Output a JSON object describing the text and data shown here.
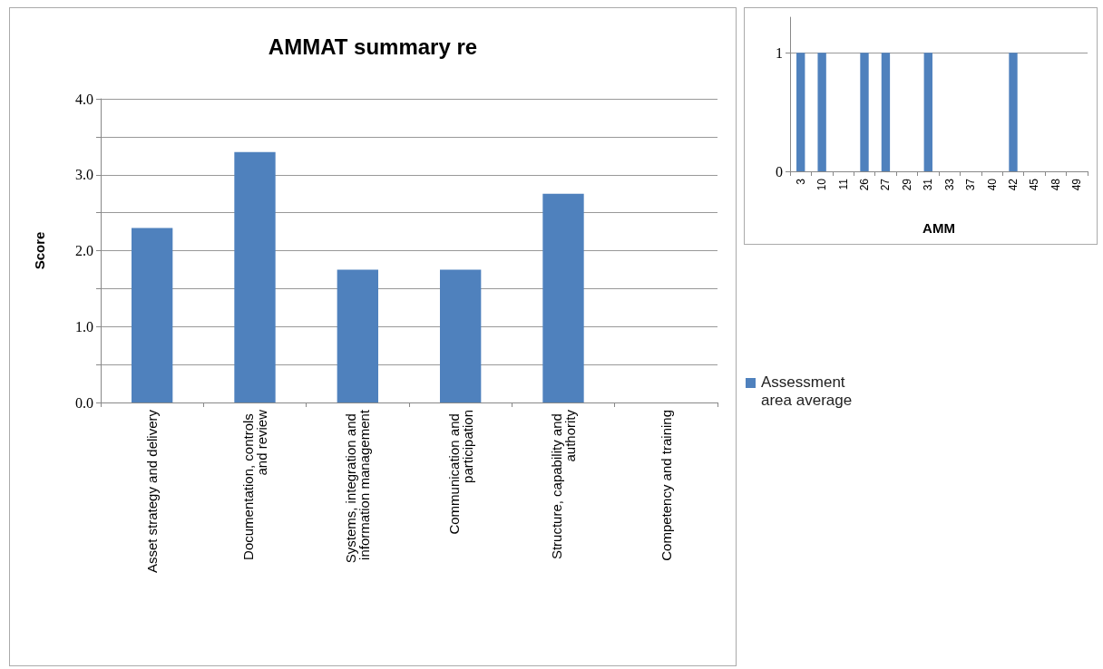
{
  "chart_data": [
    {
      "type": "bar",
      "title": "AMMAT summary re",
      "ylabel": "Score",
      "categories": [
        "Asset strategy and delivery",
        "Documentation, controls and review",
        "Systems, integration and information management",
        "Communication and participation",
        "Structure, capability and authority",
        "Competency and training"
      ],
      "series": [
        {
          "name": "Assessment area average",
          "color": "#4f81bd",
          "values": [
            2.3,
            3.3,
            1.75,
            1.75,
            2.75,
            null
          ]
        }
      ],
      "ylim": [
        0,
        4
      ],
      "yticks": [
        {
          "value": 0,
          "label": "0.0"
        },
        {
          "value": 0.5,
          "label": null
        },
        {
          "value": 1,
          "label": "1.0"
        },
        {
          "value": 1.5,
          "label": null
        },
        {
          "value": 2,
          "label": "2.0"
        },
        {
          "value": 2.5,
          "label": null
        },
        {
          "value": 3,
          "label": "3.0"
        },
        {
          "value": 3.5,
          "label": null
        },
        {
          "value": 4,
          "label": "4.0"
        }
      ],
      "grid": "y",
      "legend": "right"
    },
    {
      "type": "bar",
      "xlabel": "AMM",
      "categories": [
        "3",
        "10",
        "11",
        "26",
        "27",
        "29",
        "31",
        "33",
        "37",
        "40",
        "42",
        "45",
        "48",
        "49"
      ],
      "series": [
        {
          "color": "#4f81bd",
          "values": [
            1,
            1,
            null,
            1,
            1,
            null,
            1,
            null,
            null,
            null,
            1,
            null,
            null,
            null
          ]
        }
      ],
      "ylim": [
        0,
        1.3
      ],
      "yticks": [
        0,
        1
      ],
      "grid": "y",
      "legend": false
    }
  ]
}
